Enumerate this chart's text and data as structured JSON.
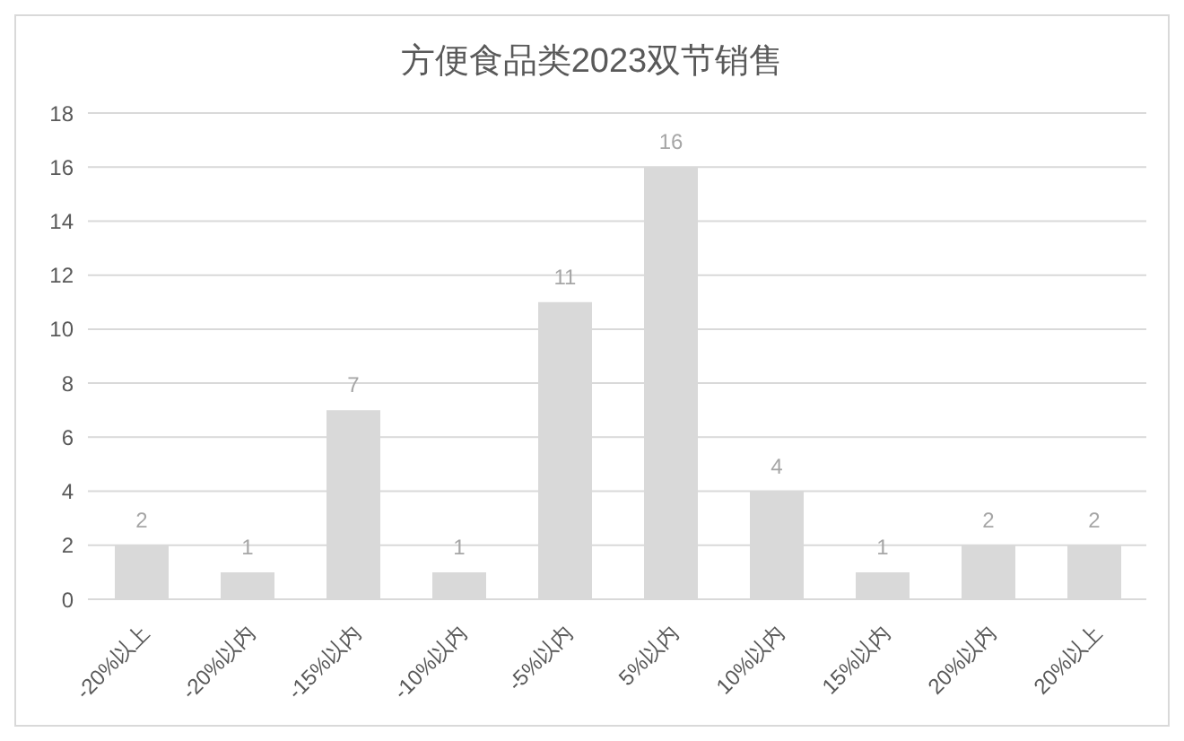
{
  "chart_data": {
    "type": "bar",
    "title": "方便食品类2023双节销售",
    "categories": [
      "-20%以上",
      "-20%以内",
      "-15%以内",
      "-10%以内",
      "-5%以内",
      "5%以内",
      "10%以内",
      "15%以内",
      "20%以内",
      "20%以上"
    ],
    "values": [
      2,
      1,
      7,
      1,
      11,
      16,
      4,
      1,
      2,
      2
    ],
    "color": "#d9d9d9",
    "ylim": [
      0,
      18
    ],
    "yticks": [
      0,
      2,
      4,
      6,
      8,
      10,
      12,
      14,
      16,
      18
    ],
    "grid": "y",
    "data_labels": true
  }
}
